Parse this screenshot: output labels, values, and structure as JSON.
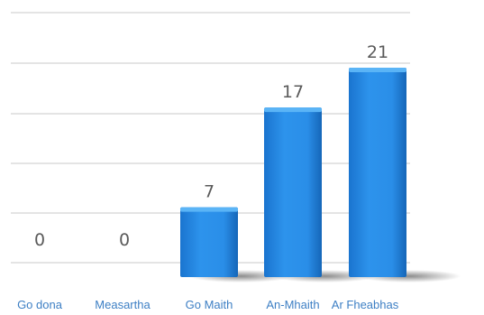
{
  "chart_data": {
    "type": "bar",
    "categories": [
      "Go dona",
      "Measartha",
      "Go Maith",
      "An-Mhaith",
      "Ar Fheabhas"
    ],
    "values": [
      0,
      0,
      7,
      17,
      21
    ],
    "data_labels": [
      "0",
      "0",
      "7",
      "17",
      "21"
    ],
    "ylim": [
      0,
      25
    ],
    "grid": true,
    "legend": "none",
    "title": "",
    "xlabel": "",
    "ylabel": ""
  },
  "colors": {
    "bar": "#2a8ee8",
    "bar_light": "#5ab4f6",
    "bar_dark": "#1566b8",
    "grid": "#dcdcdc",
    "value_label": "#5a5a5a",
    "category_label": "#3d7fc4"
  }
}
